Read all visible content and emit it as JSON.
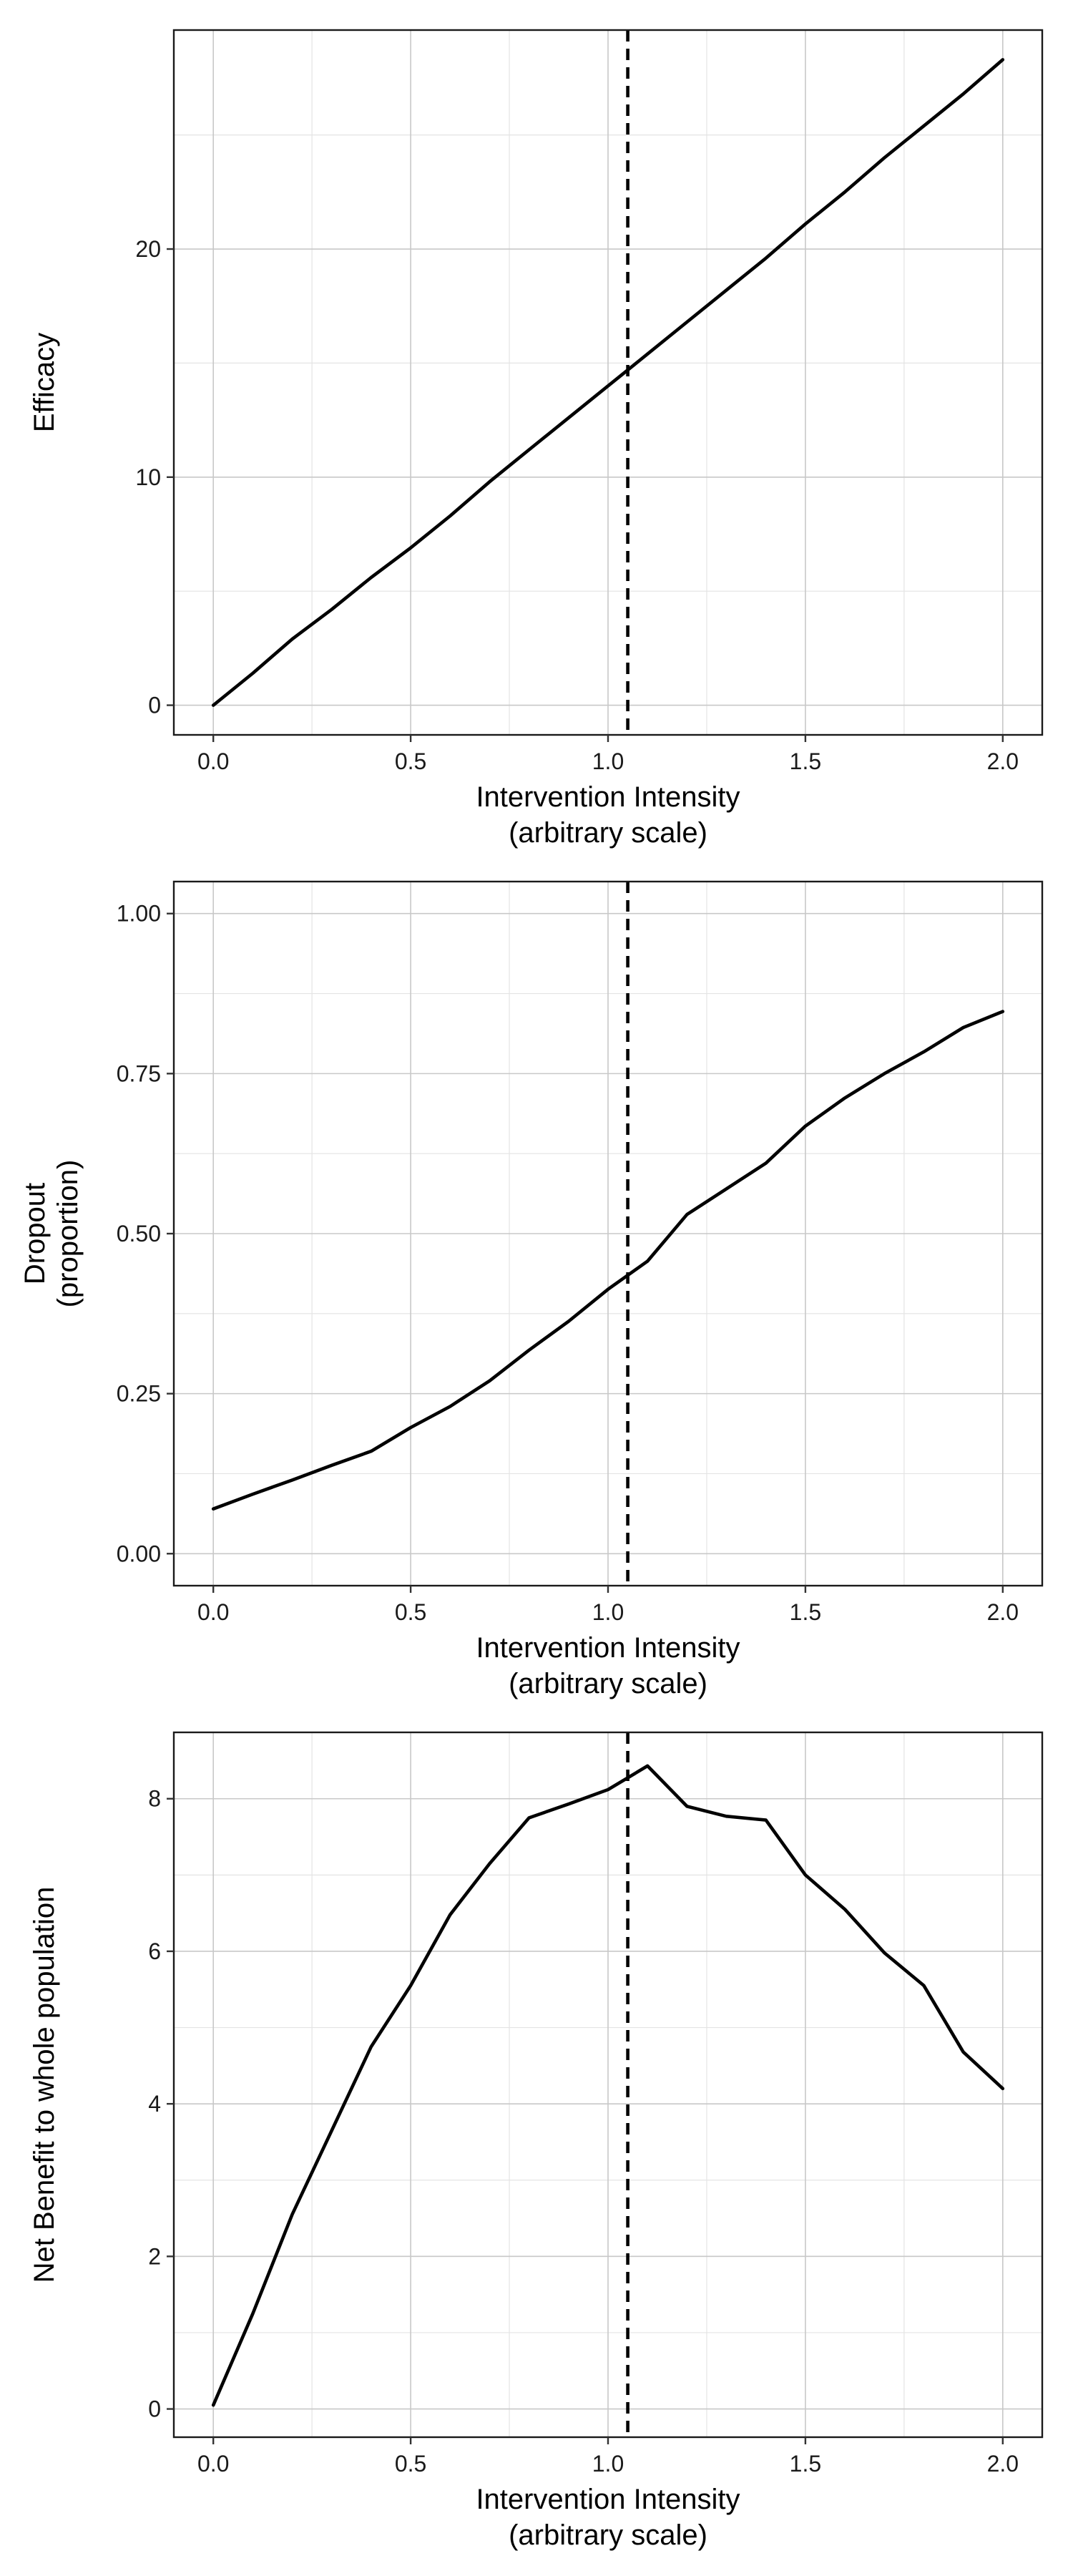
{
  "chart_data": [
    {
      "type": "line",
      "xlabel": [
        "Intervention Intensity",
        "(arbitrary scale)"
      ],
      "ylabel": [
        "Efficacy"
      ],
      "xlim": [
        -0.1,
        2.1
      ],
      "ylim": [
        -1.3,
        29.6
      ],
      "x_ticks": [
        0.0,
        0.5,
        1.0,
        1.5,
        2.0
      ],
      "x_tick_labels": [
        "0.0",
        "0.5",
        "1.0",
        "1.5",
        "2.0"
      ],
      "y_ticks": [
        0,
        10,
        20
      ],
      "y_tick_labels": [
        "0",
        "10",
        "20"
      ],
      "y_minor": [
        5,
        15,
        25
      ],
      "grid": true,
      "vline": 1.05,
      "series": [
        {
          "x": [
            0.0,
            0.1,
            0.2,
            0.3,
            0.4,
            0.5,
            0.6,
            0.7,
            0.8,
            0.9,
            1.0,
            1.1,
            1.2,
            1.3,
            1.4,
            1.5,
            1.6,
            1.7,
            1.8,
            1.9,
            2.0
          ],
          "y": [
            0.0,
            1.4,
            2.9,
            4.2,
            5.6,
            6.9,
            8.3,
            9.8,
            11.2,
            12.6,
            14.0,
            15.4,
            16.8,
            18.2,
            19.6,
            21.1,
            22.5,
            24.0,
            25.4,
            26.8,
            28.3
          ]
        }
      ]
    },
    {
      "type": "line",
      "xlabel": [
        "Intervention Intensity",
        "(arbitrary scale)"
      ],
      "ylabel": [
        "Dropout",
        "(proportion)"
      ],
      "xlim": [
        -0.1,
        2.1
      ],
      "ylim": [
        -0.05,
        1.05
      ],
      "x_ticks": [
        0.0,
        0.5,
        1.0,
        1.5,
        2.0
      ],
      "x_tick_labels": [
        "0.0",
        "0.5",
        "1.0",
        "1.5",
        "2.0"
      ],
      "y_ticks": [
        0.0,
        0.25,
        0.5,
        0.75,
        1.0
      ],
      "y_tick_labels": [
        "0.00",
        "0.25",
        "0.50",
        "0.75",
        "1.00"
      ],
      "y_minor": [
        0.125,
        0.375,
        0.625,
        0.875
      ],
      "grid": true,
      "vline": 1.05,
      "series": [
        {
          "x": [
            0.0,
            0.1,
            0.2,
            0.3,
            0.4,
            0.5,
            0.6,
            0.7,
            0.8,
            0.9,
            1.0,
            1.1,
            1.2,
            1.3,
            1.4,
            1.5,
            1.6,
            1.7,
            1.8,
            1.9,
            2.0
          ],
          "y": [
            0.07,
            0.093,
            0.115,
            0.138,
            0.16,
            0.197,
            0.23,
            0.27,
            0.318,
            0.363,
            0.413,
            0.457,
            0.53,
            0.57,
            0.61,
            0.668,
            0.712,
            0.75,
            0.784,
            0.822,
            0.847
          ]
        }
      ]
    },
    {
      "type": "line",
      "xlabel": [
        "Intervention Intensity",
        "(arbitrary scale)"
      ],
      "ylabel": [
        "Net Benefit to whole population"
      ],
      "xlim": [
        -0.1,
        2.1
      ],
      "ylim": [
        -0.37,
        8.87
      ],
      "x_ticks": [
        0.0,
        0.5,
        1.0,
        1.5,
        2.0
      ],
      "x_tick_labels": [
        "0.0",
        "0.5",
        "1.0",
        "1.5",
        "2.0"
      ],
      "y_ticks": [
        0,
        2,
        4,
        6,
        8
      ],
      "y_tick_labels": [
        "0",
        "2",
        "4",
        "6",
        "8"
      ],
      "y_minor": [
        1,
        3,
        5,
        7
      ],
      "grid": true,
      "vline": 1.05,
      "series": [
        {
          "x": [
            0.0,
            0.1,
            0.2,
            0.3,
            0.4,
            0.5,
            0.6,
            0.7,
            0.8,
            0.9,
            1.0,
            1.1,
            1.2,
            1.3,
            1.4,
            1.5,
            1.6,
            1.7,
            1.8,
            1.9,
            2.0
          ],
          "y": [
            0.05,
            1.25,
            2.55,
            3.65,
            4.75,
            5.55,
            6.48,
            7.15,
            7.75,
            7.93,
            8.12,
            8.43,
            7.9,
            7.77,
            7.72,
            7.0,
            6.55,
            5.98,
            5.55,
            4.68,
            4.2
          ]
        }
      ]
    }
  ]
}
